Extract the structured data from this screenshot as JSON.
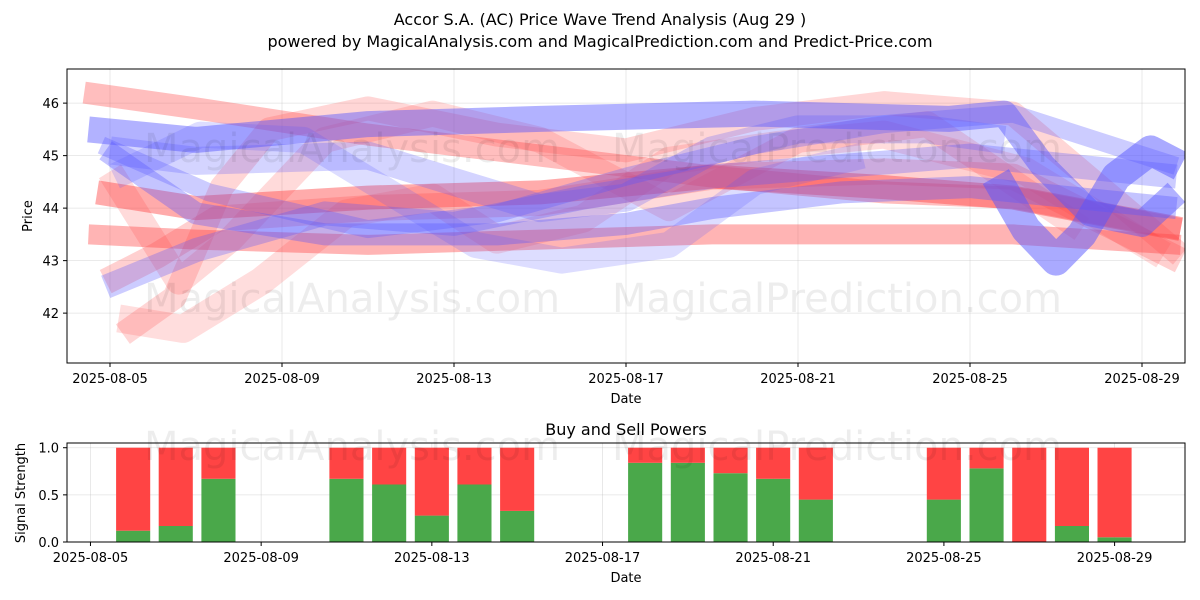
{
  "header": {
    "title": "Accor S.A. (AC) Price Wave Trend Analysis (Aug 29 )",
    "subtitle": "powered by MagicalAnalysis.com and MagicalPrediction.com and Predict-Price.com"
  },
  "watermarks": [
    "MagicalAnalysis.com",
    "MagicalPrediction.com"
  ],
  "chart_data": [
    {
      "type": "line",
      "name": "price-wave-trend",
      "xlabel": "Date",
      "ylabel": "Price",
      "xlim": [
        "2025-08-04",
        "2025-08-30"
      ],
      "ylim": [
        41.05,
        46.65
      ],
      "x_ticks": [
        "2025-08-05",
        "2025-08-09",
        "2025-08-13",
        "2025-08-17",
        "2025-08-21",
        "2025-08-25",
        "2025-08-29"
      ],
      "y_ticks": [
        42,
        43,
        44,
        45,
        46
      ],
      "grid": true,
      "series": [
        {
          "name": "red-band-1",
          "color": "#ff4444",
          "opacity": 0.35,
          "width": 22,
          "points": [
            [
              4.4,
              46.2
            ],
            [
              7,
              45.9
            ],
            [
              11,
              45.4
            ],
            [
              15,
              45.0
            ],
            [
              19,
              44.6
            ],
            [
              23,
              44.3
            ],
            [
              26,
              44.2
            ],
            [
              29.9,
              43.6
            ]
          ]
        },
        {
          "name": "red-band-2",
          "color": "#ff4444",
          "opacity": 0.45,
          "width": 24,
          "points": [
            [
              4.7,
              44.3
            ],
            [
              7,
              44.0
            ],
            [
              11,
              44.2
            ],
            [
              15,
              44.3
            ],
            [
              19,
              44.6
            ],
            [
              23,
              44.4
            ],
            [
              26,
              44.2
            ],
            [
              29.9,
              43.6
            ]
          ]
        },
        {
          "name": "red-band-3",
          "color": "#ff4444",
          "opacity": 0.4,
          "width": 20,
          "points": [
            [
              4.5,
              43.5
            ],
            [
              7,
              43.4
            ],
            [
              11,
              43.3
            ],
            [
              15,
              43.4
            ],
            [
              19,
              43.5
            ],
            [
              23,
              43.5
            ],
            [
              26,
              43.5
            ],
            [
              29.9,
              43.3
            ]
          ]
        },
        {
          "name": "red-band-4",
          "color": "#ff4444",
          "opacity": 0.25,
          "width": 26,
          "points": [
            [
              4.9,
              42.6
            ],
            [
              6.1,
              43.1
            ],
            [
              7.5,
              43.8
            ],
            [
              11,
              44.0
            ],
            [
              15,
              44.1
            ],
            [
              19,
              44.6
            ],
            [
              23,
              44.7
            ],
            [
              26,
              44.6
            ],
            [
              29.9,
              43.0
            ]
          ]
        },
        {
          "name": "red-band-5",
          "color": "#ff4444",
          "opacity": 0.22,
          "width": 24,
          "points": [
            [
              5.3,
              41.6
            ],
            [
              6.5,
              42.3
            ],
            [
              7.6,
              44.4
            ],
            [
              8.7,
              45.5
            ],
            [
              11,
              45.9
            ],
            [
              14,
              45.4
            ],
            [
              17,
              45.1
            ],
            [
              20,
              45.7
            ],
            [
              23,
              46.0
            ],
            [
              26,
              45.8
            ],
            [
              29.9,
              43.1
            ]
          ]
        },
        {
          "name": "red-band-6",
          "color": "#ff4444",
          "opacity": 0.2,
          "width": 26,
          "points": [
            [
              5.0,
              44.7
            ],
            [
              6.6,
              42.6
            ],
            [
              7.8,
              43.4
            ],
            [
              10,
              45.3
            ],
            [
              12.5,
              45.8
            ],
            [
              15,
              45.3
            ],
            [
              18,
              44.0
            ],
            [
              21,
              45.3
            ],
            [
              24,
              45.6
            ],
            [
              27.6,
              43.6
            ]
          ]
        },
        {
          "name": "red-band-7",
          "color": "#ff4444",
          "opacity": 0.18,
          "width": 28,
          "points": [
            [
              5.2,
              41.9
            ],
            [
              6.7,
              41.7
            ],
            [
              8.5,
              42.6
            ],
            [
              10.5,
              43.9
            ],
            [
              12.5,
              44.2
            ],
            [
              14,
              43.4
            ],
            [
              16,
              43.8
            ],
            [
              18,
              44.9
            ],
            [
              20.5,
              45.2
            ],
            [
              23,
              45.4
            ],
            [
              26.3,
              44.7
            ],
            [
              29.5,
              43.1
            ]
          ]
        },
        {
          "name": "blue-band-1",
          "color": "#5555ff",
          "opacity": 0.45,
          "width": 26,
          "points": [
            [
              4.5,
              45.5
            ],
            [
              7,
              45.3
            ],
            [
              11,
              45.6
            ],
            [
              15,
              45.7
            ],
            [
              20,
              45.8
            ],
            [
              24.5,
              45.7
            ],
            [
              25.8,
              45.8
            ],
            [
              26.7,
              44.8
            ],
            [
              27.8,
              43.9
            ],
            [
              29,
              43.7
            ],
            [
              29.8,
              44.3
            ]
          ]
        },
        {
          "name": "blue-band-2",
          "color": "#5555ff",
          "opacity": 0.35,
          "width": 22,
          "points": [
            [
              4.9,
              45.1
            ],
            [
              7,
              43.9
            ],
            [
              10,
              43.5
            ],
            [
              14,
              43.5
            ],
            [
              17,
              43.7
            ],
            [
              19,
              44.0
            ],
            [
              22,
              44.3
            ],
            [
              25,
              44.4
            ],
            [
              29.8,
              44.0
            ]
          ]
        },
        {
          "name": "blue-band-3",
          "color": "#5555ff",
          "opacity": 0.3,
          "width": 18,
          "points": [
            [
              4.8,
              45.2
            ],
            [
              7.3,
              44.3
            ],
            [
              11,
              43.6
            ],
            [
              14,
              43.9
            ],
            [
              17,
              44.6
            ],
            [
              20,
              45.2
            ],
            [
              23,
              45.6
            ],
            [
              26,
              45.8
            ],
            [
              29.8,
              44.8
            ]
          ]
        },
        {
          "name": "blue-band-4",
          "color": "#5555ff",
          "opacity": 0.3,
          "width": 24,
          "points": [
            [
              4.9,
              42.5
            ],
            [
              7,
              43.2
            ],
            [
              10,
              43.9
            ],
            [
              13,
              43.7
            ],
            [
              16,
              44.2
            ],
            [
              19,
              44.6
            ],
            [
              22,
              44.8
            ],
            [
              25,
              45.0
            ],
            [
              29.8,
              44.6
            ]
          ]
        },
        {
          "name": "blue-band-5",
          "color": "#5555ff",
          "opacity": 0.25,
          "width": 28,
          "points": [
            [
              5,
              45.1
            ],
            [
              7,
              44.9
            ],
            [
              11,
              45.0
            ],
            [
              13,
              44.5
            ],
            [
              15,
              44.0
            ],
            [
              17,
              44.2
            ],
            [
              19,
              45.1
            ],
            [
              21,
              45.5
            ],
            [
              24,
              45.5
            ],
            [
              25.8,
              45.3
            ]
          ]
        },
        {
          "name": "blue-band-6",
          "color": "#5555ff",
          "opacity": 0.5,
          "width": 30,
          "points": [
            [
              25.6,
              44.6
            ],
            [
              26.3,
              43.6
            ],
            [
              27,
              43.0
            ],
            [
              27.6,
              43.5
            ],
            [
              28.4,
              44.6
            ],
            [
              29.2,
              45.1
            ],
            [
              29.9,
              44.8
            ]
          ]
        },
        {
          "name": "blue-band-7",
          "color": "#5555ff",
          "opacity": 0.2,
          "width": 26,
          "points": [
            [
              5.1,
              44.6
            ],
            [
              7.1,
              45.4
            ],
            [
              9.5,
              45.3
            ],
            [
              11.5,
              44.3
            ],
            [
              13.5,
              43.3
            ],
            [
              15.5,
              43.0
            ],
            [
              18,
              43.3
            ],
            [
              20,
              44.5
            ],
            [
              22.5,
              45.0
            ]
          ]
        }
      ]
    },
    {
      "type": "bar",
      "name": "buy-and-sell-powers",
      "title": "Buy and Sell Powers",
      "xlabel": "Date",
      "ylabel": "Signal Strength",
      "ylim": [
        0,
        1.05
      ],
      "y_ticks": [
        "0.0",
        "0.5",
        "1.0"
      ],
      "x_ticks": [
        "2025-08-05",
        "2025-08-09",
        "2025-08-13",
        "2025-08-17",
        "2025-08-21",
        "2025-08-25",
        "2025-08-29"
      ],
      "series": [
        {
          "name": "Buy",
          "color": "#4aa84a"
        },
        {
          "name": "Sell",
          "color": "#ff4444"
        }
      ],
      "categories": [
        "2025-08-06",
        "2025-08-07",
        "2025-08-08",
        "2025-08-11",
        "2025-08-12",
        "2025-08-13",
        "2025-08-14",
        "2025-08-15",
        "2025-08-18",
        "2025-08-19",
        "2025-08-20",
        "2025-08-21",
        "2025-08-22",
        "2025-08-25",
        "2025-08-26",
        "2025-08-27",
        "2025-08-28",
        "2025-08-29"
      ],
      "buy": [
        0.12,
        0.17,
        0.67,
        0.67,
        0.61,
        0.28,
        0.61,
        0.33,
        0.84,
        0.84,
        0.73,
        0.67,
        0.45,
        0.45,
        0.78,
        0.0,
        0.17,
        0.05
      ],
      "sell": [
        0.88,
        0.83,
        0.33,
        0.33,
        0.39,
        0.72,
        0.39,
        0.67,
        0.16,
        0.16,
        0.27,
        0.33,
        0.55,
        0.55,
        0.22,
        1.0,
        0.83,
        0.95
      ]
    }
  ]
}
